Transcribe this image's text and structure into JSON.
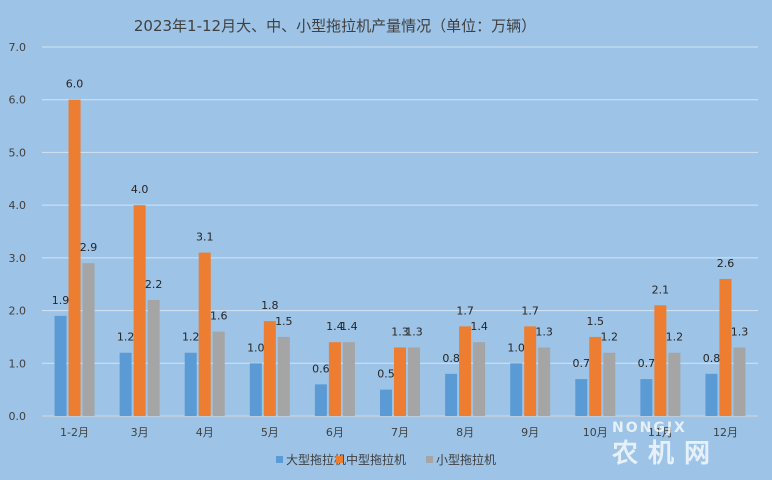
{
  "chart_data": {
    "type": "bar",
    "title": "2023年1-12月大、中、小型拖拉机产量情况（单位：万辆）",
    "categories": [
      "1-2月",
      "3月",
      "4月",
      "5月",
      "6月",
      "7月",
      "8月",
      "9月",
      "10月",
      "11月",
      "12月"
    ],
    "series": [
      {
        "name": "大型拖拉机",
        "color": "#5b9bd5",
        "values": [
          1.9,
          1.2,
          1.2,
          1.0,
          0.6,
          0.5,
          0.8,
          1.0,
          0.7,
          0.7,
          0.8
        ]
      },
      {
        "name": "中型拖拉机",
        "color": "#ed7d31",
        "values": [
          6.0,
          4.0,
          3.1,
          1.8,
          1.4,
          1.3,
          1.7,
          1.7,
          1.5,
          2.1,
          2.6
        ]
      },
      {
        "name": "小型拖拉机",
        "color": "#a5a5a5",
        "values": [
          2.9,
          2.2,
          1.6,
          1.5,
          1.4,
          1.3,
          1.4,
          1.3,
          1.2,
          1.2,
          1.3
        ]
      }
    ],
    "ylim": [
      0,
      7
    ],
    "yticks": [
      "0.0",
      "1.0",
      "2.0",
      "3.0",
      "4.0",
      "5.0",
      "6.0",
      "7.0"
    ],
    "grid": true,
    "legend": "bottom"
  },
  "watermark": {
    "en": "NONGJX",
    "cn": "农机网"
  }
}
